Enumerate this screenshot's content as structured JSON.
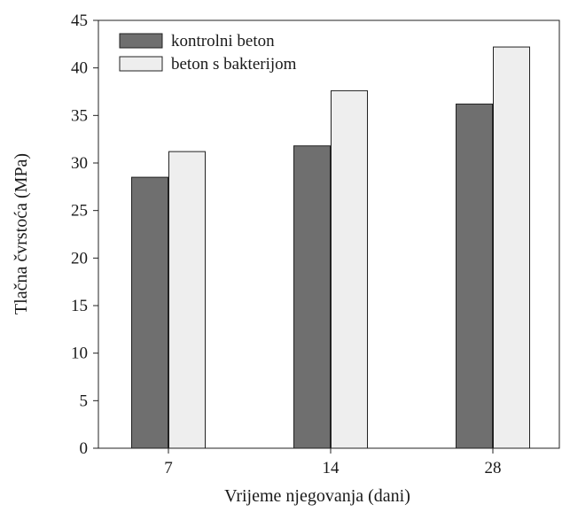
{
  "chart_data": {
    "type": "bar",
    "categories": [
      "7",
      "14",
      "28"
    ],
    "series": [
      {
        "name": "kontrolni beton",
        "values": [
          28.5,
          31.8,
          36.2
        ],
        "color": "#6f6f6f"
      },
      {
        "name": "beton s bakterijom",
        "values": [
          31.2,
          37.6,
          42.2
        ],
        "color": "#eeeeee"
      }
    ],
    "xlabel": "Vrijeme njegovanja (dani)",
    "ylabel": "Tlačna čvrstoća (MPa)",
    "ylim": [
      0,
      45
    ],
    "yticks": [
      0,
      5,
      10,
      15,
      20,
      25,
      30,
      35,
      40,
      45
    ],
    "grid": false,
    "legend_position": "top-left"
  }
}
